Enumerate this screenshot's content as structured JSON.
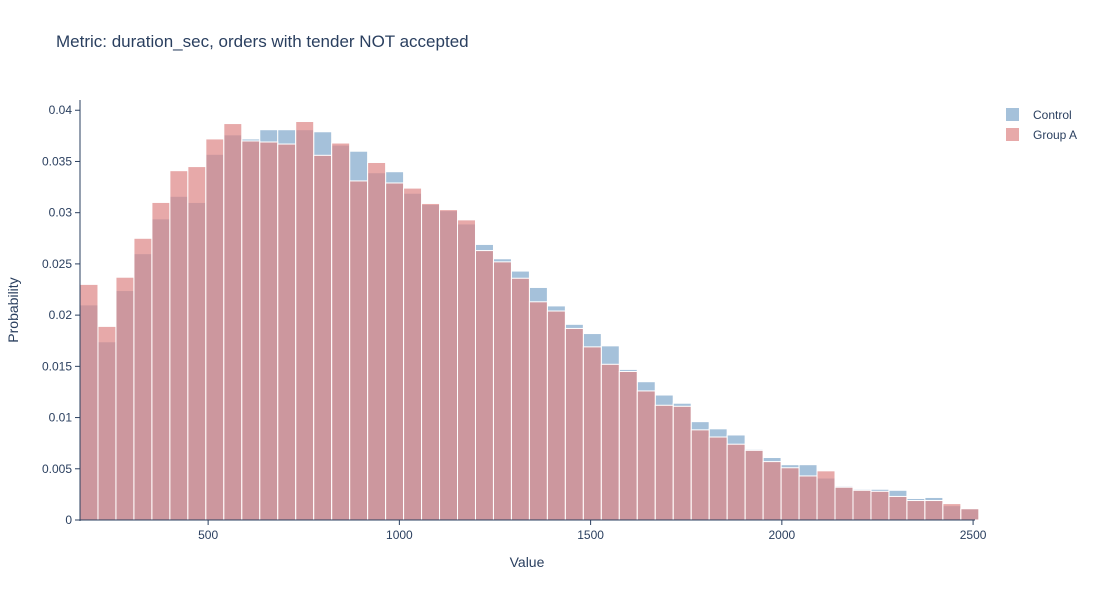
{
  "chart_data": {
    "type": "bar",
    "title": "Metric: duration_sec, orders with tender NOT accepted",
    "xlabel": "Value",
    "ylabel": "Probability",
    "xlim": [
      165,
      2505
    ],
    "ylim": [
      0,
      0.041
    ],
    "x_ticks": [
      500,
      1000,
      1500,
      2000,
      2500
    ],
    "y_ticks": [
      0,
      0.005,
      0.01,
      0.015,
      0.02,
      0.025,
      0.03,
      0.035,
      0.04
    ],
    "bin_start": 165,
    "bin_width": 47,
    "legend_position": "top-right",
    "grid": false,
    "series": [
      {
        "name": "Control",
        "color": "#7fa6cb",
        "values": [
          0.021,
          0.0174,
          0.0224,
          0.026,
          0.0294,
          0.0316,
          0.031,
          0.0357,
          0.0376,
          0.0372,
          0.0381,
          0.0381,
          0.0381,
          0.0379,
          0.0366,
          0.036,
          0.0339,
          0.034,
          0.0319,
          0.0308,
          0.0302,
          0.0289,
          0.0269,
          0.0255,
          0.0243,
          0.0227,
          0.0209,
          0.0191,
          0.0182,
          0.017,
          0.0147,
          0.0135,
          0.0122,
          0.0114,
          0.0096,
          0.0089,
          0.0083,
          0.0069,
          0.0061,
          0.0054,
          0.0054,
          0.0041,
          0.0033,
          0.003,
          0.003,
          0.0029,
          0.0021,
          0.0022,
          0.0014,
          0.0011
        ]
      },
      {
        "name": "Group A",
        "color": "#dd8585",
        "values": [
          0.023,
          0.0189,
          0.0237,
          0.0275,
          0.031,
          0.0341,
          0.0345,
          0.0372,
          0.0387,
          0.037,
          0.0369,
          0.0367,
          0.0389,
          0.0356,
          0.0368,
          0.0331,
          0.0349,
          0.0329,
          0.0324,
          0.0309,
          0.0303,
          0.0293,
          0.0263,
          0.0252,
          0.0236,
          0.0213,
          0.0204,
          0.0187,
          0.0169,
          0.0152,
          0.0145,
          0.0126,
          0.0112,
          0.0111,
          0.0088,
          0.0081,
          0.0074,
          0.0068,
          0.0057,
          0.0051,
          0.0043,
          0.0048,
          0.0032,
          0.0029,
          0.0028,
          0.0023,
          0.0019,
          0.0019,
          0.0016,
          0.0011
        ]
      }
    ]
  }
}
